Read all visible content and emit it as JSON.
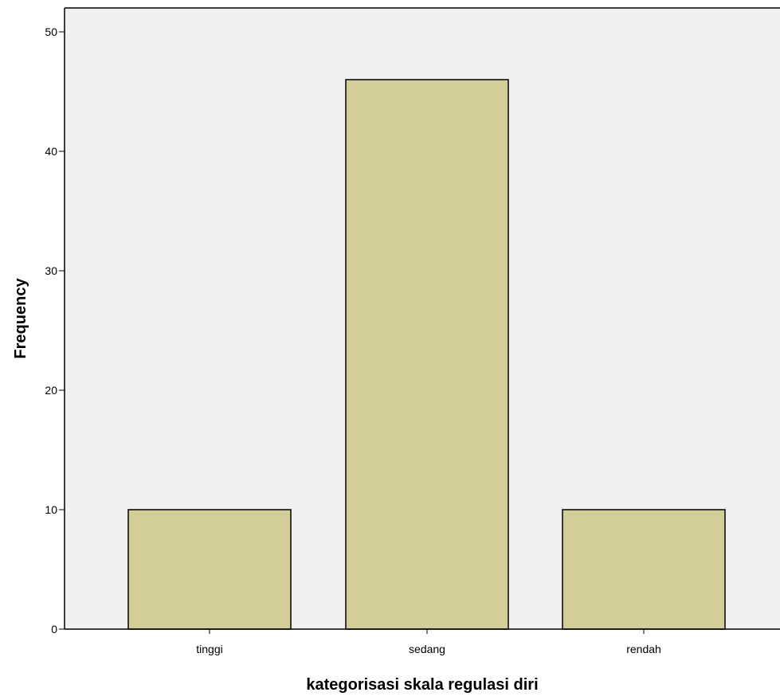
{
  "chart_data": {
    "type": "bar",
    "title": "",
    "xlabel": "kategorisasi skala regulasi diri",
    "ylabel": "Frequency",
    "categories": [
      "tinggi",
      "sedang",
      "rendah"
    ],
    "values": [
      10,
      46,
      10
    ],
    "ylim": [
      0,
      52
    ],
    "yticks": [
      0,
      10,
      20,
      30,
      40,
      50
    ],
    "grid": false,
    "legend": "none",
    "colors": {
      "bar_fill": "#d3ce97",
      "bar_stroke": "#000000",
      "plot_background": "#f0f0f0",
      "axis": "#000000"
    }
  }
}
